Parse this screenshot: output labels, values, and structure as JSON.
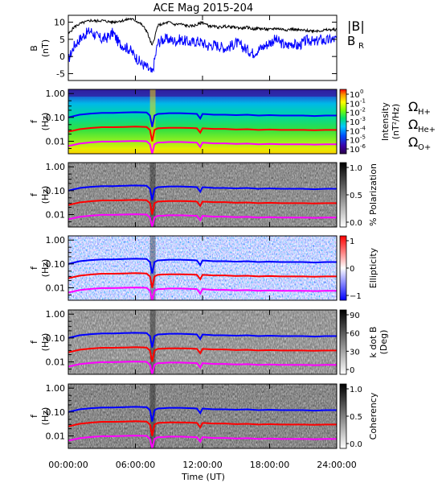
{
  "chart_data": {
    "type": "line",
    "title": "ACE Mag 2015-204",
    "xlabel": "Time (UT)",
    "x_ticks": [
      "00:00:00",
      "06:00:00",
      "12:00:00",
      "18:00:00",
      "24:00:00"
    ],
    "x_range_hours": [
      0,
      24
    ],
    "grid": false,
    "colors": {
      "black": "#000000",
      "blue": "#0000ff",
      "red": "#ff0000",
      "magenta": "#ff00ff"
    },
    "panels": [
      {
        "id": "field",
        "type": "line",
        "ylabel": "B",
        "yunit": "(nT)",
        "ylim": [
          -7,
          12
        ],
        "y_ticks": [
          "10",
          "5",
          "0",
          "-5"
        ],
        "y_tick_values": [
          10,
          5,
          0,
          -5
        ],
        "legend_B": "|B|",
        "legend_BR": "B",
        "legend_BR_sub": "R",
        "series": [
          {
            "name": "|B|",
            "color": "#000000",
            "x": [
              0,
              0.5,
              1,
              1.5,
              2,
              2.5,
              3,
              3.5,
              4,
              4.5,
              5,
              5.5,
              6,
              6.5,
              7,
              7.5,
              8,
              8.5,
              9,
              9.5,
              10,
              10.5,
              11,
              11.5,
              12,
              12.5,
              13,
              13.5,
              14,
              14.5,
              15,
              15.5,
              16,
              16.5,
              17,
              17.5,
              18,
              18.5,
              19,
              19.5,
              20,
              20.5,
              21,
              21.5,
              22,
              22.5,
              23,
              23.5,
              24
            ],
            "y": [
              6.5,
              8.5,
              9.5,
              10,
              10.5,
              10.3,
              10.5,
              10.2,
              10,
              10.3,
              10.5,
              11,
              10.5,
              9.5,
              7.5,
              3,
              9,
              9.5,
              10,
              9.3,
              9.5,
              9,
              8.8,
              9.2,
              10,
              9,
              8.7,
              8.5,
              8.8,
              8.6,
              8.5,
              8.2,
              8.5,
              8,
              8.2,
              8,
              7.8,
              8.2,
              8,
              7.8,
              8,
              7.7,
              7.6,
              7.5,
              7.5,
              7.5,
              7.7,
              7.8,
              7.8
            ]
          },
          {
            "name": "BR",
            "color": "#0000ff",
            "x": [
              0,
              0.5,
              1,
              1.5,
              2,
              2.5,
              3,
              3.5,
              4,
              4.5,
              5,
              5.5,
              6,
              6.5,
              7,
              7.5,
              8,
              8.5,
              9,
              9.5,
              10,
              10.5,
              11,
              11.5,
              12,
              12.5,
              13,
              13.5,
              14,
              14.5,
              15,
              15.5,
              16,
              16.5,
              17,
              17.5,
              18,
              18.5,
              19,
              19.5,
              20,
              20.5,
              21,
              21.5,
              22,
              22.5,
              23,
              23.5,
              24
            ],
            "y": [
              -1,
              3,
              5,
              6.5,
              7.5,
              6,
              5,
              5.5,
              7,
              4,
              3,
              2,
              0,
              -2,
              -3,
              -5,
              4,
              5,
              5,
              4.5,
              5,
              4.5,
              4,
              4.5,
              4,
              3,
              3.5,
              3,
              2.5,
              3,
              4,
              3,
              2,
              1,
              2,
              3,
              4,
              5,
              4,
              3,
              4,
              3,
              4,
              5,
              4,
              5,
              4.5,
              5,
              5
            ]
          }
        ]
      },
      {
        "id": "intensity",
        "type": "heatmap",
        "ylabel": "f",
        "yunit": "(Hz)",
        "y_scale": "log",
        "ylim": [
          0.003,
          1.5
        ],
        "y_ticks": [
          "1.00",
          "0.10",
          "0.01"
        ],
        "y_tick_values": [
          1,
          0.1,
          0.01
        ],
        "colorbar_label": "Intensity",
        "colorbar_unit": "(nT²/Hz)",
        "colorbar_ticks": [
          "10",
          "10",
          "10",
          "10",
          "10",
          "10",
          "10"
        ],
        "colorbar_exps": [
          "0",
          "-1",
          "-2",
          "-3",
          "-4",
          "-5",
          "-6"
        ]
      },
      {
        "id": "polarization",
        "type": "heatmap",
        "ylabel": "f",
        "yunit": "(Hz)",
        "y_scale": "log",
        "ylim": [
          0.003,
          1.5
        ],
        "y_ticks": [
          "1.00",
          "0.10",
          "0.01"
        ],
        "y_tick_values": [
          1,
          0.1,
          0.01
        ],
        "colorbar_label": "% Polarization",
        "colorbar_ticks": [
          "1.0",
          "0.5",
          "0.0"
        ],
        "colorbar_values": [
          1.0,
          0.5,
          0.0
        ]
      },
      {
        "id": "ellipticity",
        "type": "heatmap",
        "ylabel": "f",
        "yunit": "(Hz)",
        "y_scale": "log",
        "ylim": [
          0.003,
          1.5
        ],
        "y_ticks": [
          "1.00",
          "0.10",
          "0.01"
        ],
        "y_tick_values": [
          1,
          0.1,
          0.01
        ],
        "colorbar_label": "Ellipticity",
        "colorbar_ticks": [
          "1",
          "0",
          "−1"
        ],
        "colorbar_values": [
          1,
          0,
          -1
        ]
      },
      {
        "id": "kdotb",
        "type": "heatmap",
        "ylabel": "f",
        "yunit": "(Hz)",
        "y_scale": "log",
        "ylim": [
          0.003,
          1.5
        ],
        "y_ticks": [
          "1.00",
          "0.10",
          "0.01"
        ],
        "y_tick_values": [
          1,
          0.1,
          0.01
        ],
        "colorbar_label": "k dot B",
        "colorbar_unit": "(Deg)",
        "colorbar_ticks": [
          "90",
          "60",
          "30",
          "0"
        ],
        "colorbar_values": [
          90,
          60,
          30,
          0
        ]
      },
      {
        "id": "coherency",
        "type": "heatmap",
        "ylabel": "f",
        "yunit": "(Hz)",
        "y_scale": "log",
        "ylim": [
          0.003,
          1.5
        ],
        "y_ticks": [
          "1.00",
          "0.10",
          "0.01"
        ],
        "y_tick_values": [
          1,
          0.1,
          0.01
        ],
        "colorbar_label": "Coherency",
        "colorbar_ticks": [
          "1.0",
          "0.5",
          "0.0"
        ],
        "colorbar_values": [
          1.0,
          0.5,
          0.0
        ]
      }
    ],
    "gyrofrequency_lines": {
      "legend": [
        {
          "symbol": "Ω",
          "sub": "H+",
          "color": "#0000ff"
        },
        {
          "symbol": "Ω",
          "sub": "He+",
          "color": "#ff0000"
        },
        {
          "symbol": "Ω",
          "sub": "O+",
          "color": "#ff00ff"
        }
      ],
      "x": [
        0,
        1,
        2,
        3,
        4,
        5,
        6,
        7,
        7.3,
        7.5,
        7.7,
        8,
        8.5,
        9,
        10,
        11,
        11.5,
        11.8,
        12,
        13,
        14,
        15,
        16,
        17,
        18,
        19,
        20,
        21,
        22,
        23,
        24
      ],
      "H_plus": [
        0.1,
        0.13,
        0.145,
        0.155,
        0.155,
        0.16,
        0.165,
        0.16,
        0.12,
        0.04,
        0.12,
        0.14,
        0.145,
        0.15,
        0.15,
        0.145,
        0.14,
        0.09,
        0.14,
        0.13,
        0.13,
        0.125,
        0.13,
        0.12,
        0.125,
        0.12,
        0.12,
        0.12,
        0.115,
        0.12,
        0.12
      ],
      "He_plus": [
        0.025,
        0.032,
        0.036,
        0.039,
        0.039,
        0.04,
        0.041,
        0.04,
        0.03,
        0.01,
        0.03,
        0.035,
        0.036,
        0.037,
        0.037,
        0.036,
        0.035,
        0.023,
        0.035,
        0.033,
        0.033,
        0.031,
        0.032,
        0.03,
        0.031,
        0.03,
        0.03,
        0.03,
        0.029,
        0.03,
        0.03
      ],
      "O_plus": [
        0.0063,
        0.008,
        0.009,
        0.0097,
        0.0097,
        0.01,
        0.0103,
        0.01,
        0.0075,
        0.0025,
        0.0075,
        0.0088,
        0.009,
        0.0093,
        0.0093,
        0.009,
        0.0088,
        0.0057,
        0.0088,
        0.0082,
        0.0082,
        0.0078,
        0.008,
        0.0075,
        0.0078,
        0.0075,
        0.0075,
        0.0075,
        0.0073,
        0.0075,
        0.0075
      ]
    }
  }
}
